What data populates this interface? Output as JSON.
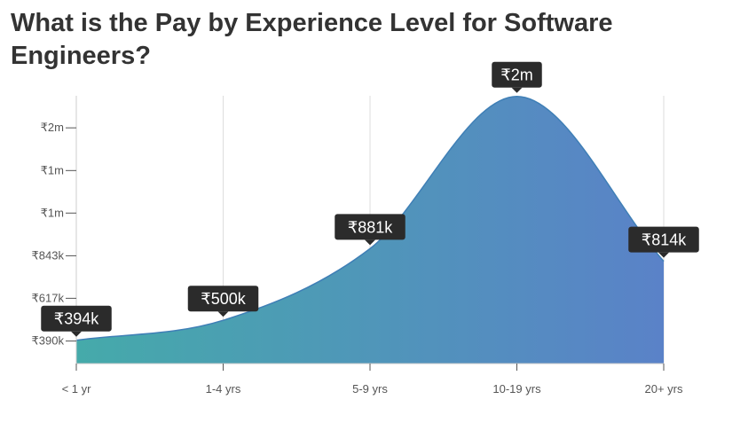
{
  "page": {
    "title": "What is the Pay by Experience Level for Software Engineers?"
  },
  "chart_data": {
    "type": "area",
    "title": "What is the Pay by Experience Level for Software Engineers?",
    "xlabel": "",
    "ylabel": "",
    "categories": [
      "< 1 yr",
      "1-4 yrs",
      "5-9 yrs",
      "10-19 yrs",
      "20+ yrs"
    ],
    "values": [
      394000,
      500000,
      881000,
      1690000,
      814000
    ],
    "data_labels": [
      "₹394k",
      "₹500k",
      "₹881k",
      "₹2m",
      "₹814k"
    ],
    "y_ticks": [
      {
        "value": 390000,
        "label": "₹390k"
      },
      {
        "value": 617000,
        "label": "₹617k"
      },
      {
        "value": 843000,
        "label": "₹843k"
      },
      {
        "value": 1070000,
        "label": "₹1m"
      },
      {
        "value": 1296000,
        "label": "₹1m"
      },
      {
        "value": 1523000,
        "label": "₹2m"
      }
    ],
    "ylim": [
      270000,
      1750000
    ],
    "grid": "vertical",
    "legend": "none",
    "colors": {
      "gradient_start": "#45aaaa",
      "gradient_end": "#5a82c8",
      "tooltip_bg": "#2b2b2b",
      "tooltip_text": "#ffffff"
    }
  }
}
